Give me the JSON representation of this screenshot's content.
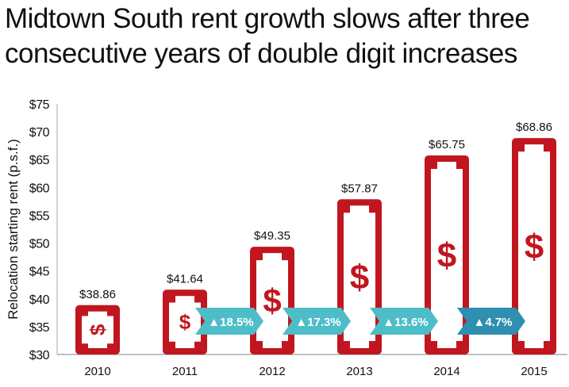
{
  "chart_data": {
    "type": "bar",
    "title": "Midtown South rent growth slows after three consecutive years of double digit increases",
    "ylabel": "Relocation starting rent (p.s.f.)",
    "xlabel": "",
    "ylim": [
      30,
      75
    ],
    "yticks": [
      30,
      35,
      40,
      45,
      50,
      55,
      60,
      65,
      70,
      75
    ],
    "ytick_labels": [
      "$30",
      "$35",
      "$40",
      "$45",
      "$50",
      "$55",
      "$60",
      "$65",
      "$70",
      "$75"
    ],
    "categories": [
      "2010",
      "2011",
      "2012",
      "2013",
      "2014",
      "2015"
    ],
    "values": [
      38.86,
      41.64,
      49.35,
      57.87,
      65.75,
      68.86
    ],
    "data_labels": [
      "$38.86",
      "$41.64",
      "$49.35",
      "$57.87",
      "$65.75",
      "$68.86"
    ],
    "growth_labels": [
      "▲18.5%",
      "▲17.3%",
      "▲13.6%",
      "▲4.7%"
    ],
    "grid": false,
    "colors": {
      "bar": "#c1161f",
      "growth": "#4dbdc8",
      "growth_last": "#2e8fb0"
    }
  }
}
